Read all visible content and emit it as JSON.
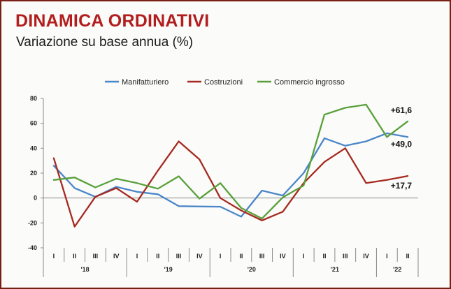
{
  "header": {
    "title": "DINAMICA ORDINATIVI",
    "subtitle": "Variazione su base annua (%)"
  },
  "chart_data": {
    "type": "line",
    "title": "DINAMICA ORDINATIVI",
    "subtitle": "Variazione su base annua (%)",
    "xlabel": "",
    "ylabel": "",
    "ylim": [
      -40,
      80
    ],
    "yticks": [
      -40,
      -20,
      0,
      20,
      40,
      60,
      80
    ],
    "grid": false,
    "legend_position": "top",
    "quarters": [
      "I",
      "II",
      "III",
      "IV",
      "I",
      "II",
      "III",
      "IV",
      "I",
      "II",
      "III",
      "IV",
      "I",
      "II",
      "III",
      "IV",
      "I",
      "II"
    ],
    "years": [
      {
        "label": "'18",
        "start": 0,
        "end": 3
      },
      {
        "label": "'19",
        "start": 4,
        "end": 7
      },
      {
        "label": "'20",
        "start": 8,
        "end": 11
      },
      {
        "label": "'21",
        "start": 12,
        "end": 15
      },
      {
        "label": "'22",
        "start": 16,
        "end": 17
      }
    ],
    "series": [
      {
        "name": "Manifatturiero",
        "color": "#4a86c8",
        "values": [
          26,
          8,
          1,
          9,
          5,
          3,
          -6.5,
          -6.8,
          -7,
          -15,
          6,
          2,
          20,
          48,
          42,
          45.5,
          52,
          49
        ]
      },
      {
        "name": "Costruzioni",
        "color": "#a52a1f",
        "values": [
          32,
          -23,
          1,
          8,
          -3,
          22,
          45.5,
          31,
          0,
          -10,
          -18,
          -11,
          12,
          29,
          40,
          12,
          14.5,
          17.7
        ]
      },
      {
        "name": "Commercio ingrosso",
        "color": "#58a03a",
        "values": [
          14.5,
          16.5,
          8.5,
          15.5,
          12,
          7.5,
          17.5,
          -0.5,
          12,
          -8,
          -16.5,
          0.5,
          10,
          67,
          72.5,
          75,
          49,
          61.6
        ]
      }
    ],
    "end_labels": [
      "+49,0",
      "+17,7",
      "+61,6"
    ]
  }
}
